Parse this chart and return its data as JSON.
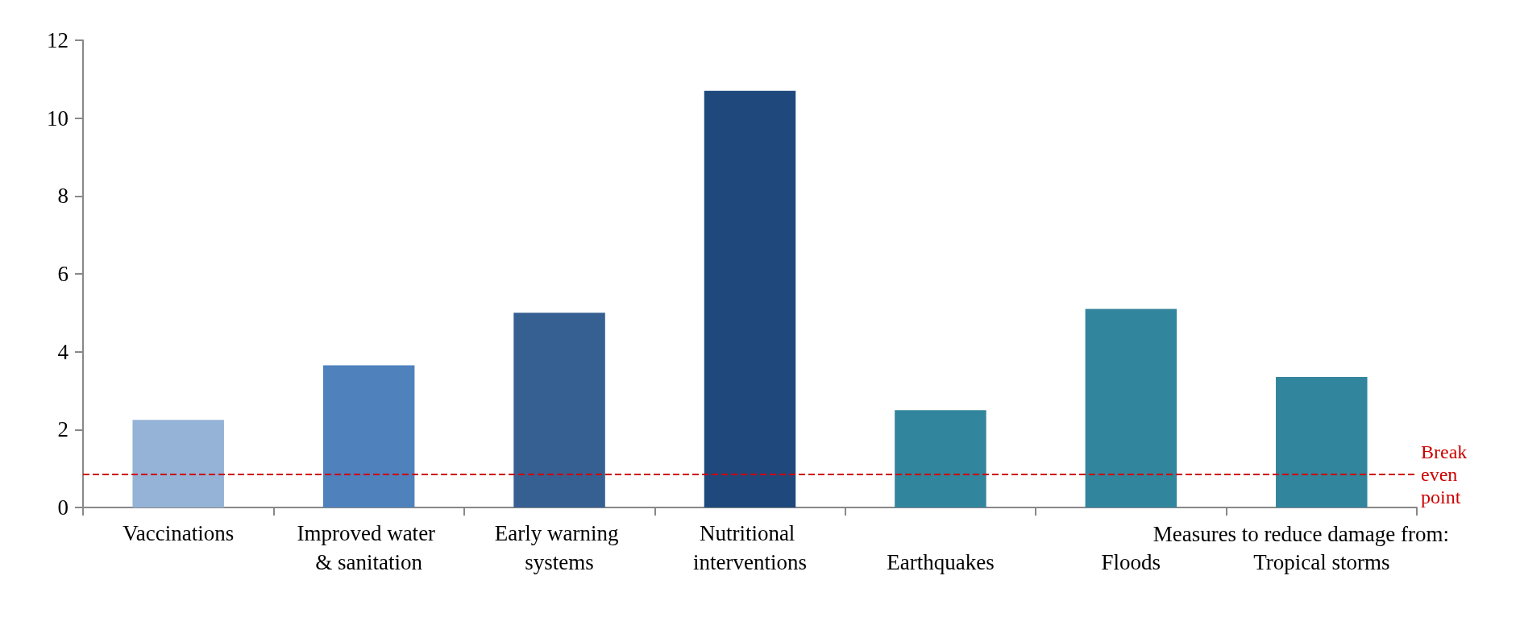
{
  "chart_data": {
    "type": "bar",
    "categories": [
      "Vaccinations",
      "Improved water & sanitation",
      "Early warning systems",
      "Nutritional interventions",
      "Earthquakes",
      "Floods",
      "Tropical storms"
    ],
    "values": [
      2.25,
      3.65,
      5.0,
      10.7,
      2.5,
      5.1,
      3.35
    ],
    "colors": [
      "#95b3d7",
      "#4f81bd",
      "#366092",
      "#1f497d",
      "#31859c",
      "#31859c",
      "#31859c"
    ],
    "ylim": [
      0,
      12
    ],
    "yticks": [
      0,
      2,
      4,
      6,
      8,
      10,
      12
    ],
    "grid": false,
    "ref_lines": [
      {
        "axis": "y",
        "value": 0.85,
        "label": "Break even point",
        "color": "#cc0000",
        "line_style": "dashed"
      }
    ],
    "annotations": [
      "Measures to reduce damage from:"
    ]
  }
}
